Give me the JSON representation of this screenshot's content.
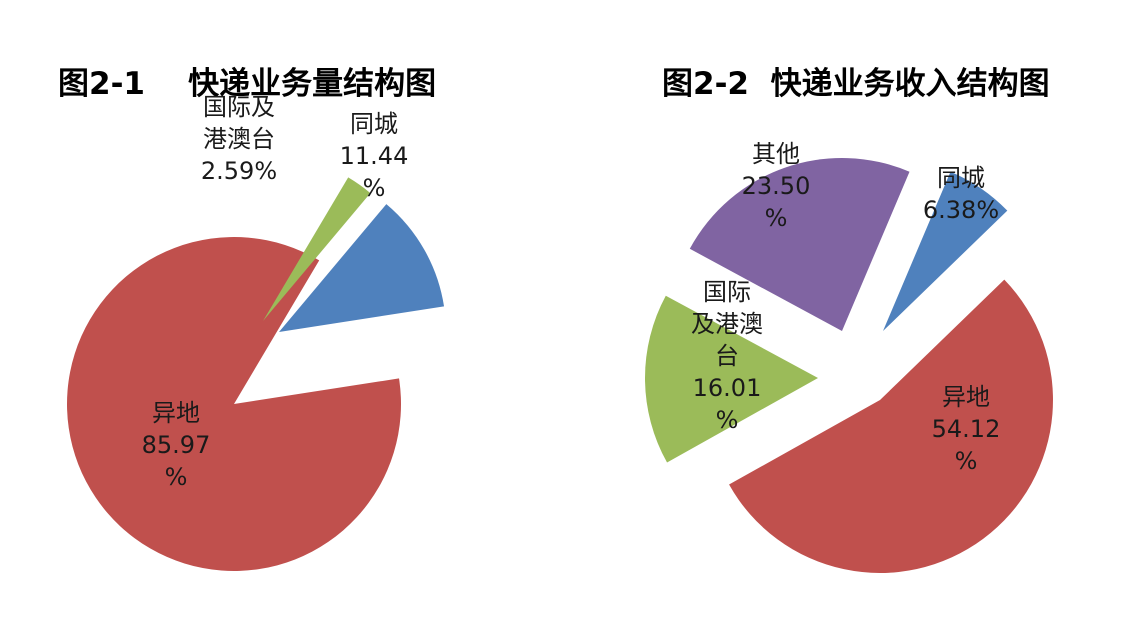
{
  "chart_data": [
    {
      "type": "pie",
      "title": "图2-1    快递业务量结构图",
      "slices": [
        {
          "name": "同城",
          "value": 11.44,
          "label_lines": [
            "同城",
            "11.44",
            "%"
          ],
          "color": "#4F81BD"
        },
        {
          "name": "异地",
          "value": 85.97,
          "label_lines": [
            "异地",
            "85.97",
            "%"
          ],
          "color": "#C0504D"
        },
        {
          "name": "国际及港澳台",
          "value": 2.59,
          "label_lines": [
            "国际及",
            "港澳台",
            "2.59%"
          ],
          "color": "#9BBB59"
        }
      ]
    },
    {
      "type": "pie",
      "title": "图2-2  快递业务收入结构图",
      "slices": [
        {
          "name": "同城",
          "value": 6.38,
          "label_lines": [
            "同城",
            "6.38%"
          ],
          "color": "#4F81BD"
        },
        {
          "name": "异地",
          "value": 54.12,
          "label_lines": [
            "异地",
            "54.12",
            "%"
          ],
          "color": "#C0504D"
        },
        {
          "name": "国际及港澳台",
          "value": 16.01,
          "label_lines": [
            "国际",
            "及港澳",
            "台",
            "16.01",
            "%"
          ],
          "color": "#9BBB59"
        },
        {
          "name": "其他",
          "value": 23.5,
          "label_lines": [
            "其他",
            "23.50",
            "%"
          ],
          "color": "#8064A2"
        }
      ]
    }
  ]
}
